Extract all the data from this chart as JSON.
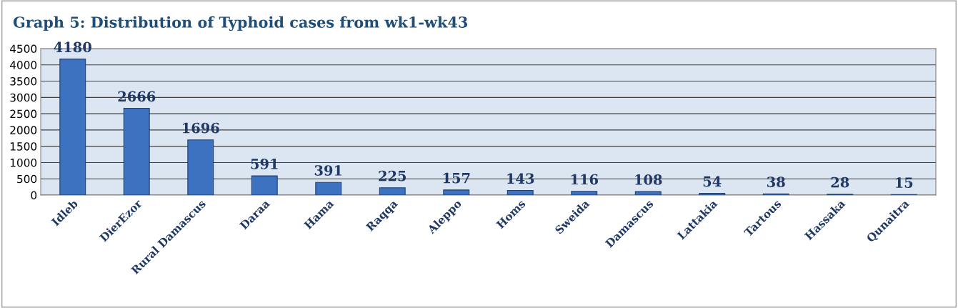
{
  "chart_data": {
    "type": "bar",
    "title": "Graph 5: Distribution of Typhoid cases from wk1-wk43",
    "categories": [
      "Idleb",
      "DierEzor",
      "Rural Damascus",
      "Daraa",
      "Hama",
      "Raqqa",
      "Aleppo",
      "Homs",
      "Sweida",
      "Damascus",
      "Lattakia",
      "Tartous",
      "Hassaka",
      "Qunaitra"
    ],
    "values": [
      4180,
      2666,
      1696,
      591,
      391,
      225,
      157,
      143,
      116,
      108,
      54,
      38,
      28,
      15
    ],
    "color": "#3c72c0",
    "ylim": [
      0,
      4500
    ],
    "yticks": [
      0,
      500,
      1000,
      1500,
      2000,
      2500,
      3000,
      3500,
      4000,
      4500
    ],
    "grid": "y",
    "data_labels": true
  }
}
